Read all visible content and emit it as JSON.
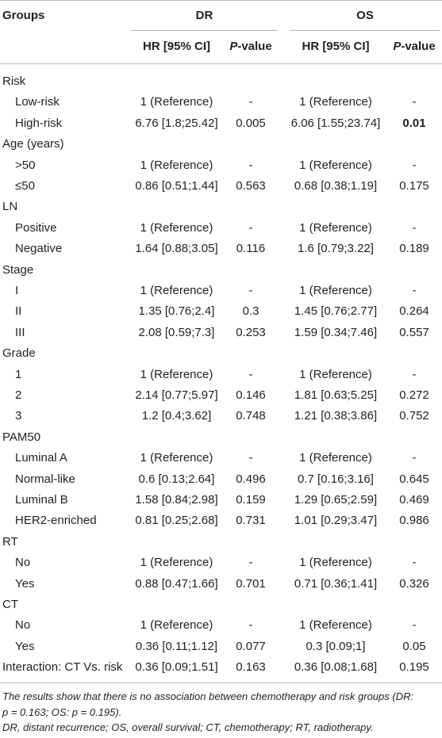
{
  "header": {
    "groups": "Groups",
    "dr": "DR",
    "os": "OS",
    "hr_ci": "HR [95% CI]",
    "p_italic": "P",
    "p_rest": "-value"
  },
  "rows": [
    {
      "kind": "group",
      "label": "Risk"
    },
    {
      "kind": "sub",
      "label": "Low-risk",
      "dr_hr": "1 (Reference)",
      "dr_p": "-",
      "os_hr": "1 (Reference)",
      "os_p": "-"
    },
    {
      "kind": "sub",
      "label": "High-risk",
      "dr_hr": "6.76 [1.8;25.42]",
      "dr_p": "0.005",
      "os_hr": "6.06 [1.55;23.74]",
      "os_p": "0.01",
      "os_p_bold": true
    },
    {
      "kind": "group",
      "label": "Age (years)"
    },
    {
      "kind": "sub",
      "label": ">50",
      "dr_hr": "1 (Reference)",
      "dr_p": "-",
      "os_hr": "1 (Reference)",
      "os_p": "-"
    },
    {
      "kind": "sub",
      "label": "≤50",
      "dr_hr": "0.86 [0.51;1.44]",
      "dr_p": "0.563",
      "os_hr": "0.68 [0.38;1.19]",
      "os_p": "0.175"
    },
    {
      "kind": "group",
      "label": "LN"
    },
    {
      "kind": "sub",
      "label": "Positive",
      "dr_hr": "1 (Reference)",
      "dr_p": "-",
      "os_hr": "1 (Reference)",
      "os_p": "-"
    },
    {
      "kind": "sub",
      "label": "Negative",
      "dr_hr": "1.64 [0.88;3.05]",
      "dr_p": "0.116",
      "os_hr": "1.6 [0.79;3.22]",
      "os_p": "0.189"
    },
    {
      "kind": "group",
      "label": "Stage"
    },
    {
      "kind": "sub",
      "label": "I",
      "dr_hr": "1 (Reference)",
      "dr_p": "-",
      "os_hr": "1 (Reference)",
      "os_p": "-"
    },
    {
      "kind": "sub",
      "label": "II",
      "dr_hr": "1.35 [0.76;2.4]",
      "dr_p": "0.3",
      "os_hr": "1.45 [0.76;2.77]",
      "os_p": "0.264"
    },
    {
      "kind": "sub",
      "label": "III",
      "dr_hr": "2.08 [0.59;7.3]",
      "dr_p": "0.253",
      "os_hr": "1.59 [0.34;7.46]",
      "os_p": "0.557"
    },
    {
      "kind": "group",
      "label": "Grade"
    },
    {
      "kind": "sub",
      "label": "1",
      "dr_hr": "1 (Reference)",
      "dr_p": "-",
      "os_hr": "1 (Reference)",
      "os_p": "-"
    },
    {
      "kind": "sub",
      "label": "2",
      "dr_hr": "2.14 [0.77;5.97]",
      "dr_p": "0.146",
      "os_hr": "1.81 [0.63;5.25]",
      "os_p": "0.272"
    },
    {
      "kind": "sub",
      "label": "3",
      "dr_hr": "1.2 [0.4;3.62]",
      "dr_p": "0.748",
      "os_hr": "1.21 [0.38;3.86]",
      "os_p": "0.752"
    },
    {
      "kind": "group",
      "label": "PAM50"
    },
    {
      "kind": "sub",
      "label": "Luminal A",
      "dr_hr": "1 (Reference)",
      "dr_p": "-",
      "os_hr": "1 (Reference)",
      "os_p": "-"
    },
    {
      "kind": "sub",
      "label": "Normal-like",
      "dr_hr": "0.6 [0.13;2.64]",
      "dr_p": "0.496",
      "os_hr": "0.7 [0.16;3.16]",
      "os_p": "0.645"
    },
    {
      "kind": "sub",
      "label": "Luminal B",
      "dr_hr": "1.58 [0.84;2.98]",
      "dr_p": "0.159",
      "os_hr": "1.29 [0.65;2.59]",
      "os_p": "0.469"
    },
    {
      "kind": "sub",
      "label": "HER2-enriched",
      "dr_hr": "0.81 [0.25;2.68]",
      "dr_p": "0.731",
      "os_hr": "1.01 [0.29;3.47]",
      "os_p": "0.986"
    },
    {
      "kind": "group",
      "label": "RT"
    },
    {
      "kind": "sub",
      "label": "No",
      "dr_hr": "1 (Reference)",
      "dr_p": "-",
      "os_hr": "1 (Reference)",
      "os_p": "-"
    },
    {
      "kind": "sub",
      "label": "Yes",
      "dr_hr": "0.88 [0.47;1.66]",
      "dr_p": "0.701",
      "os_hr": "0.71 [0.36;1.41]",
      "os_p": "0.326"
    },
    {
      "kind": "group",
      "label": "CT"
    },
    {
      "kind": "sub",
      "label": "No",
      "dr_hr": "1 (Reference)",
      "dr_p": "-",
      "os_hr": "1 (Reference)",
      "os_p": "-"
    },
    {
      "kind": "sub",
      "label": "Yes",
      "dr_hr": "0.36 [0.11;1.12]",
      "dr_p": "0.077",
      "os_hr": "0.3 [0.09;1]",
      "os_p": "0.05"
    },
    {
      "kind": "data",
      "label": "Interaction: CT Vs. risk",
      "dr_hr": "0.36 [0.09;1.51]",
      "dr_p": "0.163",
      "os_hr": "0.36 [0.08;1.68]",
      "os_p": "0.195"
    }
  ],
  "footnote": {
    "line1": "The results show that there is no association between chemotherapy and risk groups (DR:",
    "line2": "p = 0.163; OS: p = 0.195).",
    "line3": "DR, distant recurrence; OS, overall survival; CT, chemotherapy; RT, radiotherapy."
  }
}
